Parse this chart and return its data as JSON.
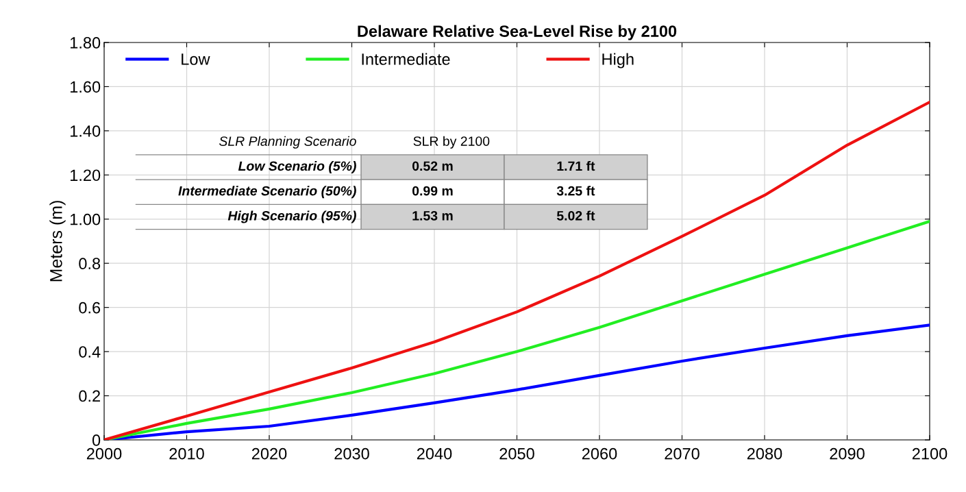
{
  "chart_data": {
    "type": "line",
    "title": "Delaware Relative Sea-Level Rise by 2100",
    "ylabel": "Meters (m)",
    "x": [
      2000,
      2010,
      2020,
      2030,
      2040,
      2050,
      2060,
      2070,
      2080,
      2090,
      2100
    ],
    "series": [
      {
        "name": "Low",
        "color": "#0000ff",
        "values": [
          0,
          0.037,
          0.062,
          0.112,
          0.168,
          0.227,
          0.292,
          0.357,
          0.416,
          0.472,
          0.52
        ]
      },
      {
        "name": "Intermediate",
        "color": "#22ee22",
        "values": [
          0,
          0.075,
          0.14,
          0.214,
          0.3,
          0.4,
          0.51,
          0.63,
          0.75,
          0.87,
          0.99
        ]
      },
      {
        "name": "High",
        "color": "#ee1111",
        "values": [
          0,
          0.108,
          0.217,
          0.326,
          0.444,
          0.58,
          0.742,
          0.922,
          1.108,
          1.335,
          1.53
        ]
      }
    ],
    "xlim": [
      2000,
      2100
    ],
    "xticks": [
      2000,
      2010,
      2020,
      2030,
      2040,
      2050,
      2060,
      2070,
      2080,
      2090,
      2100
    ],
    "ylim": [
      0,
      1.8
    ],
    "yticks": [
      0,
      {
        "value": 0.2,
        "label": "0.2"
      },
      {
        "value": 0.4,
        "label": "0.4"
      },
      {
        "value": 0.6,
        "label": "0.6"
      },
      {
        "value": 0.8,
        "label": "0.8"
      },
      {
        "value": 1.0,
        "label": "1.00"
      },
      {
        "value": 1.2,
        "label": "1.20"
      },
      {
        "value": 1.4,
        "label": "1.40"
      },
      {
        "value": 1.6,
        "label": "1.60"
      },
      {
        "value": 1.8,
        "label": "1.80"
      }
    ],
    "grid": true,
    "legend": "top left",
    "line_style": "solid",
    "marker": "none",
    "annotations": [
      "SLR Planning Scenario",
      "SLR by 2100",
      "Low Scenario (5%)",
      "0.52 m",
      "1.71 ft",
      "Intermediate Scenario (50%)",
      "0.99 m",
      "3.25 ft",
      "High Scenario (95%)",
      "1.53 m",
      "5.02 ft"
    ]
  }
}
